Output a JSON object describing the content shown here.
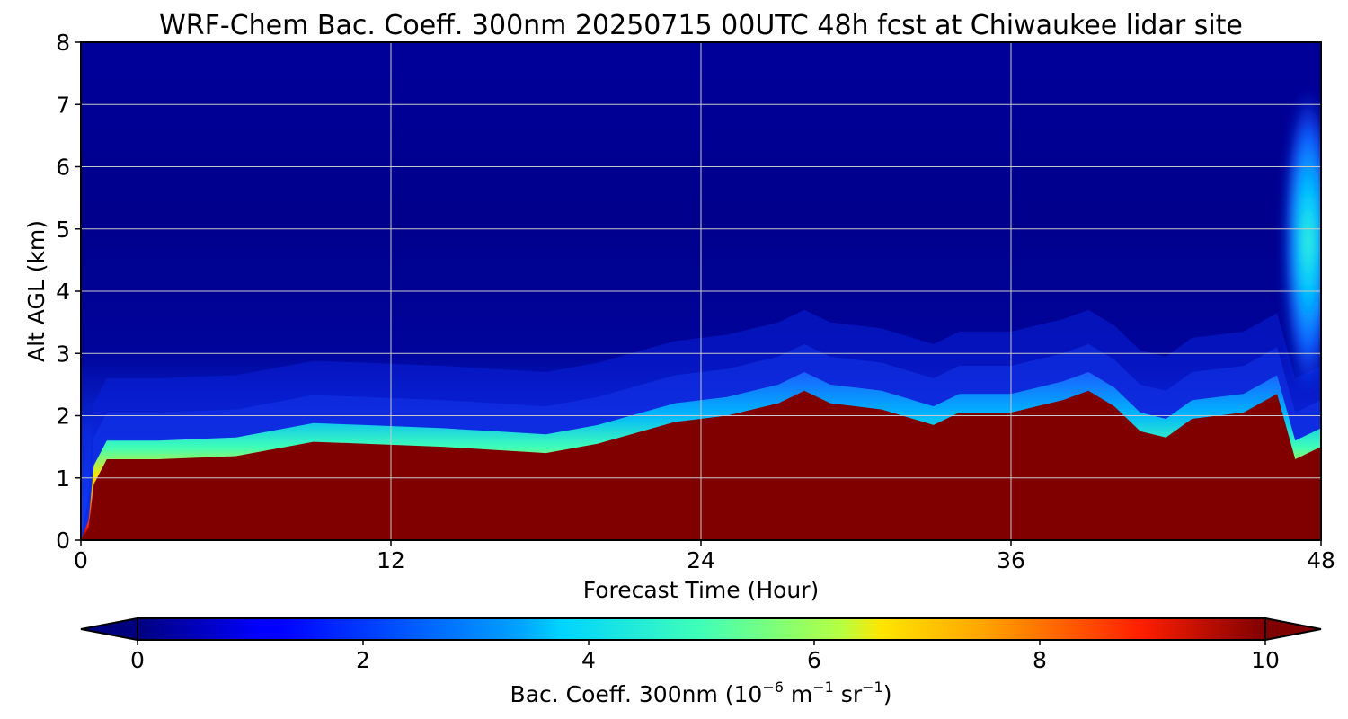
{
  "chart_data": {
    "type": "heatmap",
    "title": "WRF-Chem Bac. Coeff. 300nm  20250715 00UTC 48h fcst at Chiwaukee lidar site",
    "xlabel": "Forecast Time (Hour)",
    "ylabel": "Alt AGL (km)",
    "xlim": [
      0,
      48
    ],
    "ylim": [
      0,
      8
    ],
    "xticks": [
      "0",
      "12",
      "24",
      "36",
      "48"
    ],
    "yticks": [
      "0",
      "1",
      "2",
      "3",
      "4",
      "5",
      "6",
      "7",
      "8"
    ],
    "grid": true,
    "colormap": "jet",
    "colorbar": {
      "orientation": "horizontal",
      "placement": "bottom",
      "range": [
        0,
        10
      ],
      "extend": "both",
      "ticks": [
        "0",
        "2",
        "4",
        "6",
        "8",
        "10"
      ],
      "label_main": "Bac. Coeff. 300nm  (10",
      "label_exp1": "−6",
      "label_unit1": " m",
      "label_exp2": "−1",
      "label_unit2": " sr",
      "label_exp3": "−1",
      "label_close": ")"
    },
    "aerosol_layer_top_km": {
      "x": [
        0,
        0.3,
        0.5,
        1,
        3,
        6,
        9,
        11,
        14,
        16,
        18,
        20,
        23,
        25,
        27,
        28,
        29,
        31,
        33,
        34,
        36,
        38,
        39,
        40,
        41,
        42,
        43,
        45,
        46.3,
        47,
        48
      ],
      "y": [
        0,
        0.2,
        0.9,
        1.3,
        1.3,
        1.35,
        1.58,
        1.55,
        1.5,
        1.45,
        1.4,
        1.55,
        1.9,
        2.0,
        2.2,
        2.4,
        2.2,
        2.1,
        1.85,
        2.05,
        2.05,
        2.25,
        2.4,
        2.15,
        1.75,
        1.65,
        1.95,
        2.05,
        2.35,
        1.3,
        1.5
      ]
    },
    "plume_center": {
      "x": 47.5,
      "y": 4.8
    }
  }
}
